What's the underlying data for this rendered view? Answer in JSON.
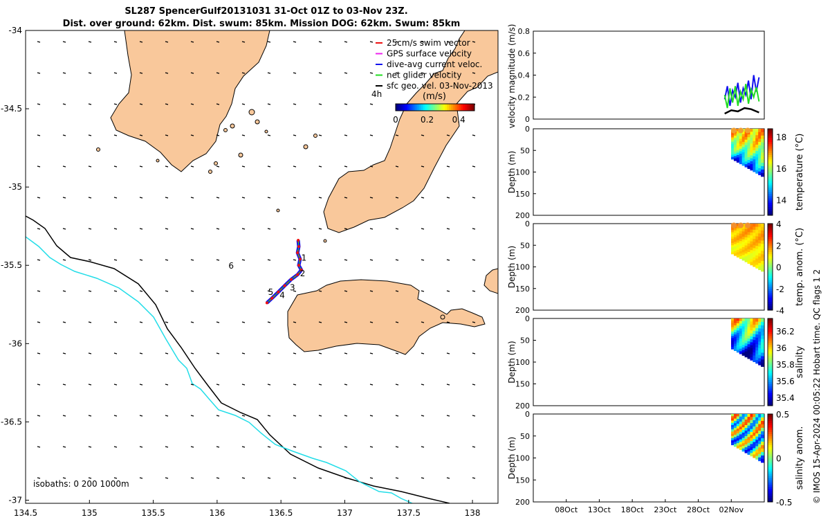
{
  "header": {
    "title_line1": "SL287 SpencerGulf20131031 31-Oct 01Z to 03-Nov 23Z.",
    "title_line2": "Dist. over ground: 62km. Dist. swum: 85km. Mission DOG: 62km. Swum: 85km"
  },
  "colors": {
    "land": "#f9c89b",
    "isobath_200": "#000000",
    "isobath_1000": "#22dde8",
    "swim_vector": "#ee1111",
    "gps_velocity": "#ee22ee",
    "current_velocity": "#1111ee",
    "net_velocity": "#22dd22",
    "geo_velocity": "#000000"
  },
  "chart_data": [
    {
      "type": "map",
      "xlim": [
        134.5,
        138.2
      ],
      "ylim": [
        -37.02,
        -34.0
      ],
      "x_ticks": [
        134.5,
        135,
        135.5,
        136,
        136.5,
        137,
        137.5,
        138
      ],
      "x_tick_labels": [
        "134.5",
        "135",
        "135.5",
        "136",
        "136.5",
        "137",
        "137.5",
        "138"
      ],
      "y_ticks": [
        -34,
        -34.5,
        -35,
        -35.5,
        -36,
        -36.5,
        -37
      ],
      "y_tick_labels": [
        "-34",
        "-34.5",
        "-35",
        "-35.5",
        "-36",
        "-36.5",
        "-37"
      ],
      "legend": {
        "placement": "top-right",
        "entries": [
          "25cm/s swim vector",
          "GPS surface velocity",
          "dive-avg current veloc.",
          "net glider velocity",
          "sfc geo. vel. 03-Nov-2013"
        ]
      },
      "colorbar": {
        "title": "(m/s)",
        "range": [
          0,
          0.5
        ],
        "tick_labels": [
          "0",
          "0.2",
          "0.4"
        ],
        "tick_values": [
          0,
          0.2,
          0.4
        ],
        "side_label": "4h"
      },
      "isobaths_label": "isobaths: 0   200  1000m",
      "track": [
        [
          136.635,
          -35.34
        ],
        [
          136.64,
          -35.38
        ],
        [
          136.63,
          -35.42
        ],
        [
          136.65,
          -35.46
        ],
        [
          136.64,
          -35.5
        ],
        [
          136.66,
          -35.53
        ],
        [
          136.63,
          -35.56
        ],
        [
          136.58,
          -35.59
        ],
        [
          136.53,
          -35.63
        ],
        [
          136.48,
          -35.67
        ],
        [
          136.43,
          -35.71
        ],
        [
          136.39,
          -35.74
        ]
      ],
      "track_labels": [
        {
          "text": "1",
          "lon": 136.68,
          "lat": -35.47
        },
        {
          "text": "2",
          "lon": 136.67,
          "lat": -35.57
        },
        {
          "text": "3",
          "lon": 136.59,
          "lat": -35.66
        },
        {
          "text": "4",
          "lon": 136.51,
          "lat": -35.71
        },
        {
          "text": "5",
          "lon": 136.42,
          "lat": -35.69
        },
        {
          "text": "6",
          "lon": 136.11,
          "lat": -35.52
        }
      ]
    },
    {
      "type": "line",
      "ylabel": "velocity magnitude (m/s)",
      "ylim": [
        0,
        0.8
      ],
      "y_ticks": [
        0,
        0.2,
        0.4,
        0.6,
        0.8
      ],
      "y_tick_labels": [
        "0",
        "0.2",
        "0.4",
        "0.6",
        "0.8"
      ],
      "xlim": [
        0,
        35
      ],
      "series": [
        {
          "color_key": "current_velocity",
          "x": [
            29.0,
            29.4,
            29.8,
            30.2,
            30.6,
            31.0,
            31.4,
            31.8,
            32.2,
            32.6,
            33.0,
            33.4,
            33.8,
            34.2
          ],
          "values": [
            0.18,
            0.3,
            0.12,
            0.26,
            0.2,
            0.33,
            0.15,
            0.28,
            0.22,
            0.35,
            0.18,
            0.4,
            0.25,
            0.38
          ]
        },
        {
          "color_key": "net_velocity",
          "x": [
            29.0,
            29.4,
            29.8,
            30.2,
            30.6,
            31.0,
            31.4,
            31.8,
            32.2,
            32.6,
            33.0,
            33.4,
            33.8,
            34.2
          ],
          "values": [
            0.22,
            0.1,
            0.28,
            0.15,
            0.3,
            0.12,
            0.25,
            0.18,
            0.32,
            0.14,
            0.27,
            0.2,
            0.29,
            0.16
          ]
        },
        {
          "color_key": "geo_velocity",
          "x": [
            29.0,
            30.0,
            31.0,
            32.0,
            33.0,
            34.2
          ],
          "values": [
            0.05,
            0.08,
            0.07,
            0.1,
            0.09,
            0.06
          ]
        }
      ]
    },
    {
      "type": "heatmap",
      "ylabel": "Depth (m)",
      "colorbar_label": "temperature (°C)",
      "ylim": [
        0,
        200
      ],
      "y_ticks": [
        0,
        50,
        100,
        150,
        200
      ],
      "y_tick_labels": [
        "0",
        "50",
        "100",
        "150",
        "200"
      ],
      "cbar_range": [
        13,
        18.5
      ],
      "cbar_ticks": [
        14,
        16,
        18
      ],
      "cbar_tick_labels": [
        "14",
        "16",
        "18"
      ]
    },
    {
      "type": "heatmap",
      "ylabel": "Depth (m)",
      "colorbar_label": "temp. anom. (°C)",
      "ylim": [
        0,
        200
      ],
      "y_ticks": [
        0,
        50,
        100,
        150,
        200
      ],
      "y_tick_labels": [
        "0",
        "50",
        "100",
        "150",
        "200"
      ],
      "cbar_range": [
        -4,
        4
      ],
      "cbar_ticks": [
        4,
        2,
        0,
        -2,
        -4
      ],
      "cbar_tick_labels": [
        "4",
        "2",
        "0",
        "-2",
        "-4"
      ]
    },
    {
      "type": "heatmap",
      "ylabel": "Depth (m)",
      "colorbar_label": "salinity",
      "ylim": [
        0,
        200
      ],
      "y_ticks": [
        0,
        50,
        100,
        150,
        200
      ],
      "y_tick_labels": [
        "0",
        "50",
        "100",
        "150",
        "200"
      ],
      "cbar_range": [
        35.3,
        36.35
      ],
      "cbar_ticks": [
        36.2,
        36,
        35.8,
        35.6,
        35.4
      ],
      "cbar_tick_labels": [
        "36.2",
        "36",
        "35.8",
        "35.6",
        "35.4"
      ]
    },
    {
      "type": "heatmap",
      "ylabel": "Depth (m)",
      "colorbar_label": "salinity anom.",
      "ylim": [
        0,
        200
      ],
      "y_ticks": [
        0,
        50,
        100,
        150,
        200
      ],
      "y_tick_labels": [
        "0",
        "50",
        "100",
        "150",
        "200"
      ],
      "cbar_range": [
        -0.5,
        0.5
      ],
      "cbar_ticks": [
        0.5,
        0,
        -0.5
      ],
      "cbar_tick_labels": [
        "0.5",
        "0",
        "-0.5"
      ],
      "x_tick_labels": [
        "08Oct",
        "13Oct",
        "18Oct",
        "23Oct",
        "28Oct",
        "02Nov"
      ]
    }
  ],
  "side_note": "© IMOS 15-Apr-2024 00:05:22 Hobart time. QC flags 1  2"
}
